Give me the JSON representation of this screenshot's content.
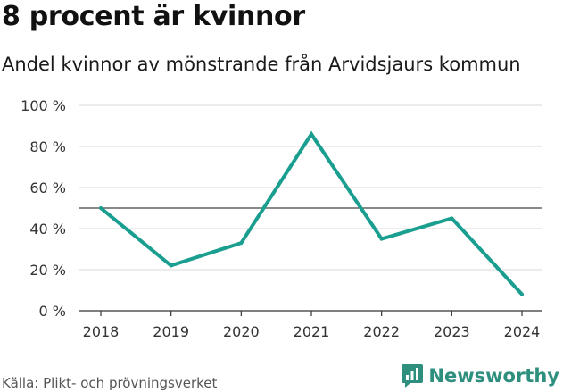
{
  "header": {
    "title": "8 procent är kvinnor",
    "subtitle": "Andel kvinnor av mönstrande från Arvidsjaurs kommun"
  },
  "footer": {
    "source": "Källa: Plikt- och prövningsverket",
    "brand": "Newsworthy",
    "brand_icon": "newsworthy-logo-icon"
  },
  "colors": {
    "line": "#1a9e8f",
    "reference_line": "#444444",
    "grid": "#d9d9d9",
    "brand": "#2f8f7f"
  },
  "chart_data": {
    "type": "line",
    "title": "8 procent är kvinnor",
    "subtitle": "Andel kvinnor av mönstrande från Arvidsjaurs kommun",
    "xlabel": "",
    "ylabel": "",
    "categories": [
      "2018",
      "2019",
      "2020",
      "2021",
      "2022",
      "2023",
      "2024"
    ],
    "series": [
      {
        "values": [
          50,
          22,
          33,
          86,
          35,
          45,
          8
        ]
      }
    ],
    "reference_line": 50,
    "ylim": [
      0,
      100
    ],
    "yticks": [
      0,
      20,
      40,
      60,
      80,
      100
    ],
    "ytick_labels": [
      "0 %",
      "20 %",
      "40 %",
      "60 %",
      "80 %",
      "100 %"
    ],
    "grid": true,
    "legend": "none"
  }
}
